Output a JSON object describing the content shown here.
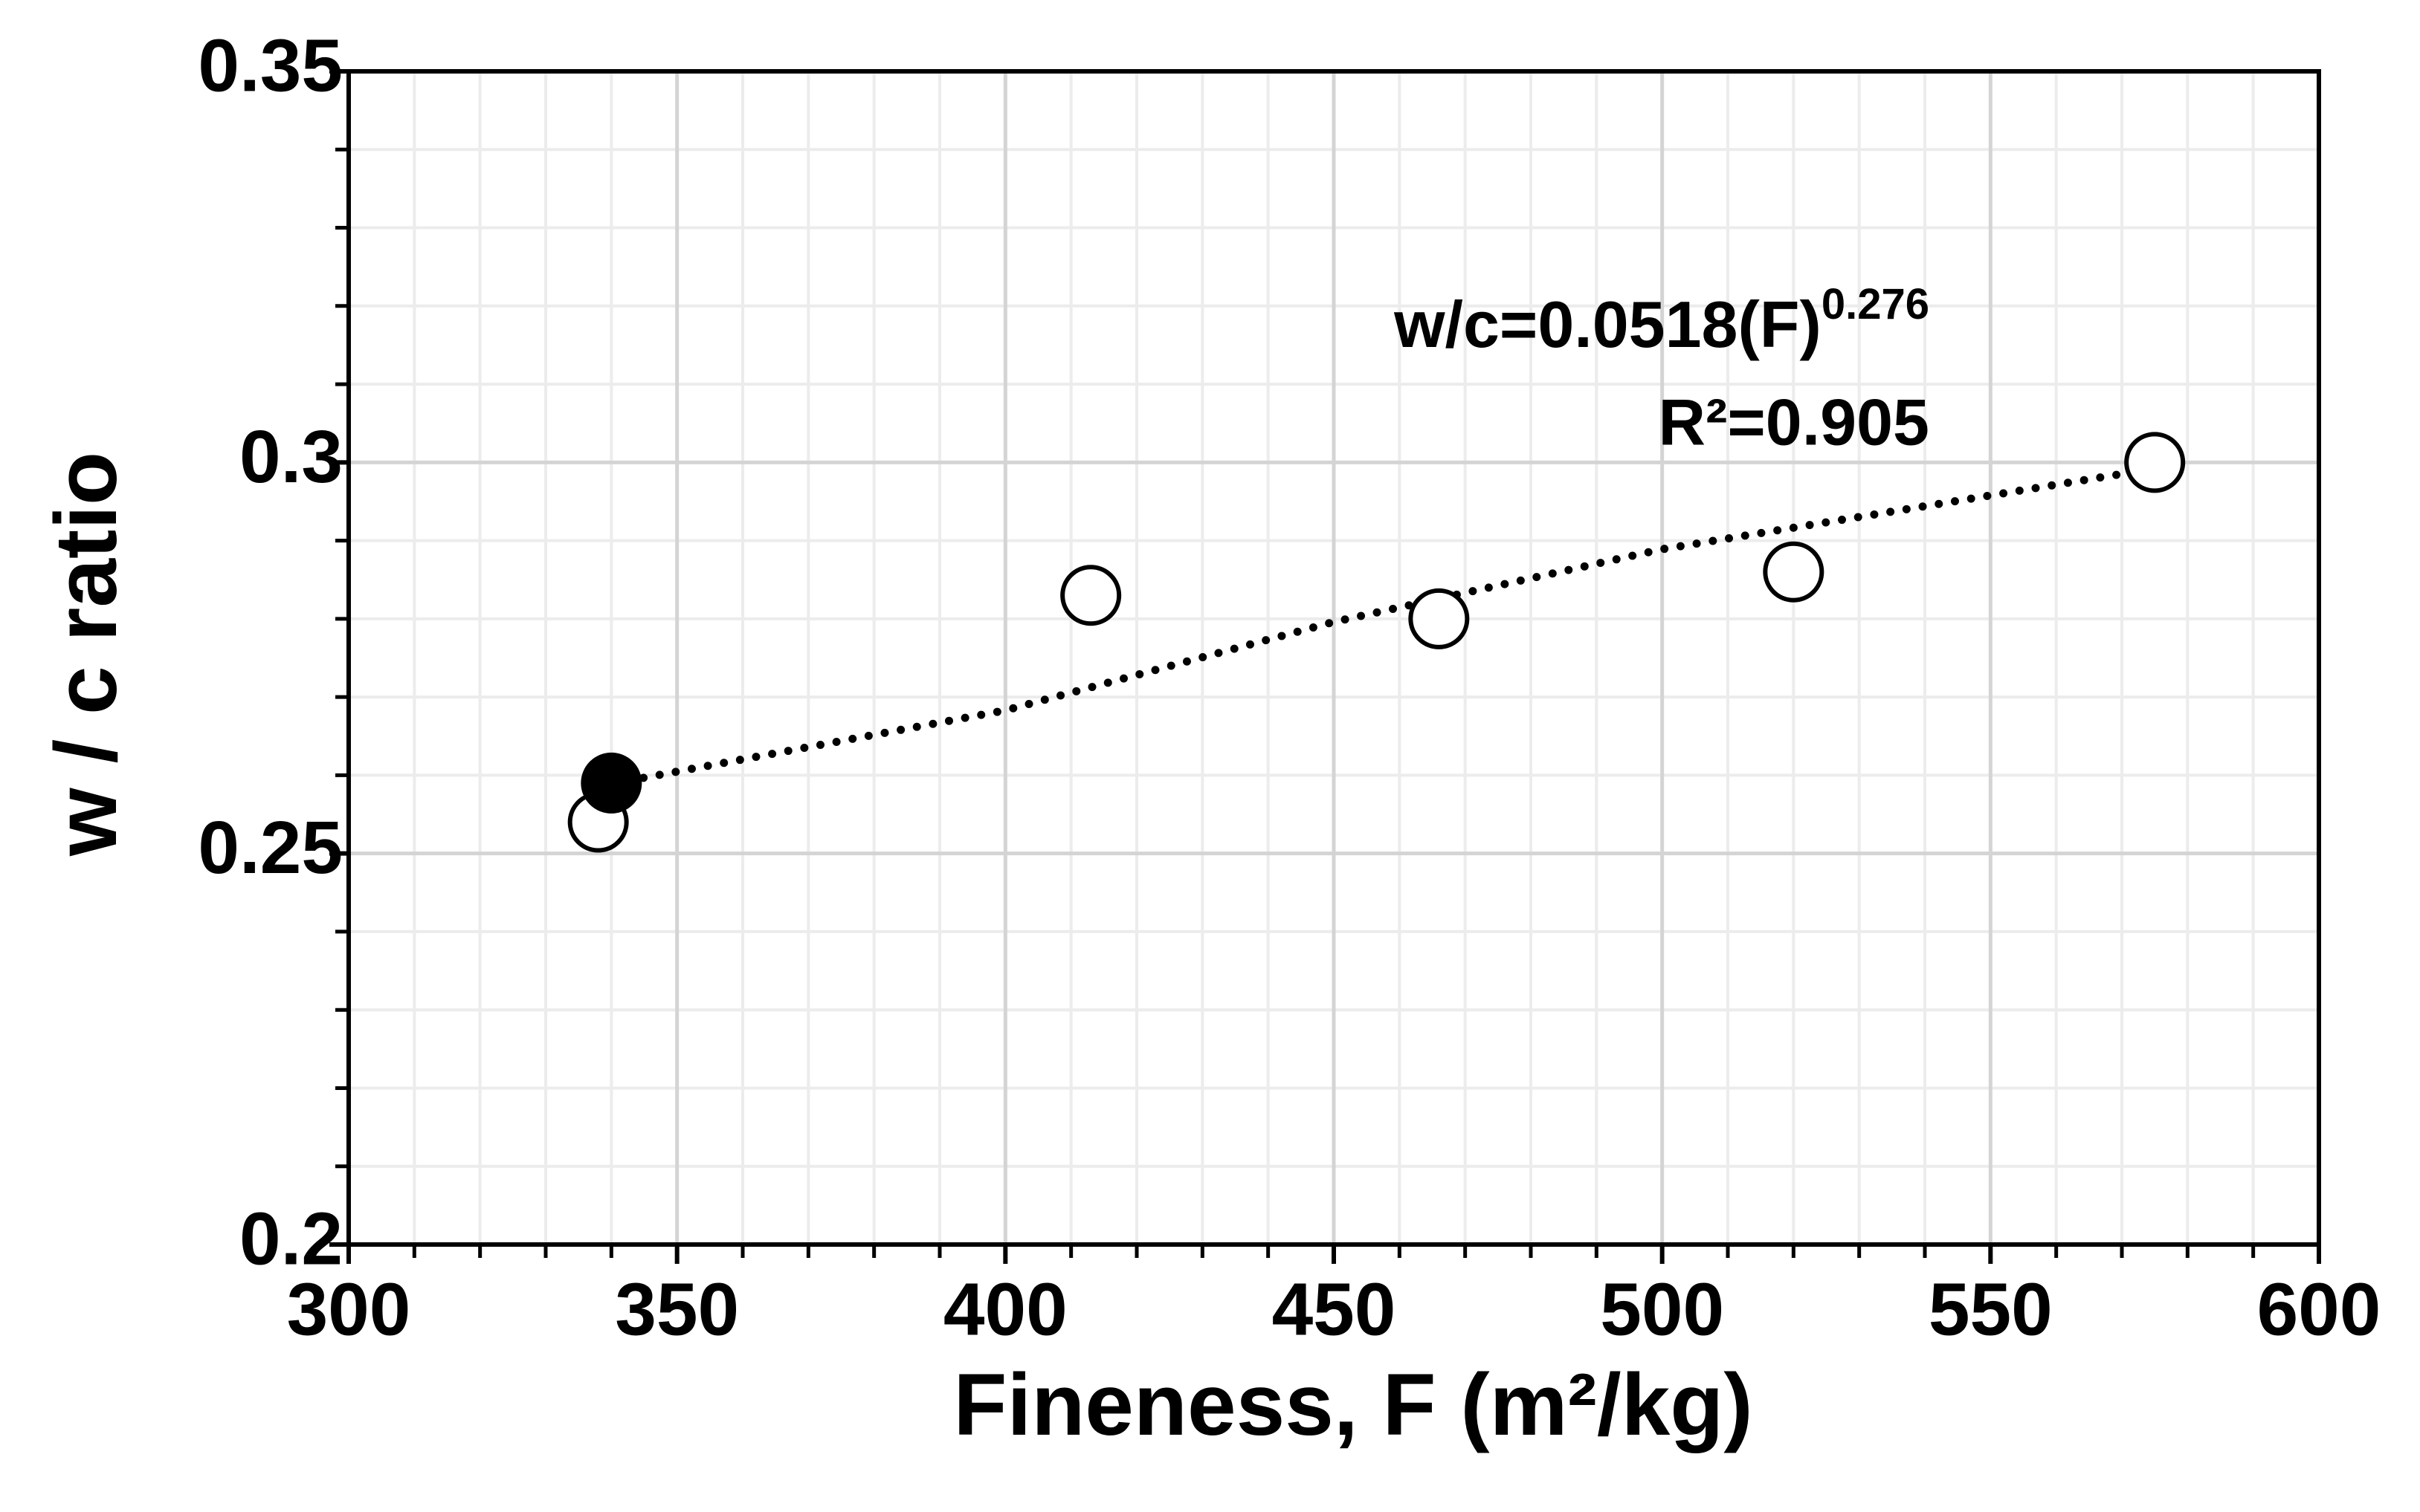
{
  "chart_data": {
    "type": "scatter",
    "x_label": "Fineness, F (m²/kg)",
    "y_label": "w / c ratio",
    "annotations": [
      {
        "text": "w/c=0.0518(F)",
        "exponent": "0.276"
      },
      {
        "text": "R²=0.905"
      }
    ],
    "series": [
      {
        "color": "#000000",
        "filled": false,
        "x": [
          338,
          413,
          466,
          520,
          575
        ],
        "values": [
          0.254,
          0.283,
          0.28,
          0.286,
          0.3
        ]
      },
      {
        "color": "#000000",
        "filled": true,
        "x": [
          340
        ],
        "values": [
          0.259
        ]
      }
    ],
    "fit": {
      "color": "#000000",
      "x": [
        340,
        400,
        450,
        500,
        572
      ],
      "values": [
        0.2589,
        0.2683,
        0.2796,
        0.2889,
        0.2988
      ]
    },
    "xlim": [
      300,
      600
    ],
    "xticks": [
      300,
      350,
      400,
      450,
      500,
      550,
      600
    ],
    "xminor_ticks": [
      310,
      320,
      330,
      340,
      360,
      370,
      380,
      390,
      410,
      420,
      430,
      440,
      460,
      470,
      480,
      490,
      510,
      520,
      530,
      540,
      560,
      570,
      580,
      590
    ],
    "ylim": [
      0.2,
      0.35
    ],
    "yticks": [
      0.2,
      0.25,
      0.3,
      0.35
    ],
    "yminor_ticks": [
      0.21,
      0.22,
      0.23,
      0.24,
      0.26,
      0.27,
      0.28,
      0.29,
      0.31,
      0.32,
      0.33,
      0.34
    ],
    "grid": true
  }
}
